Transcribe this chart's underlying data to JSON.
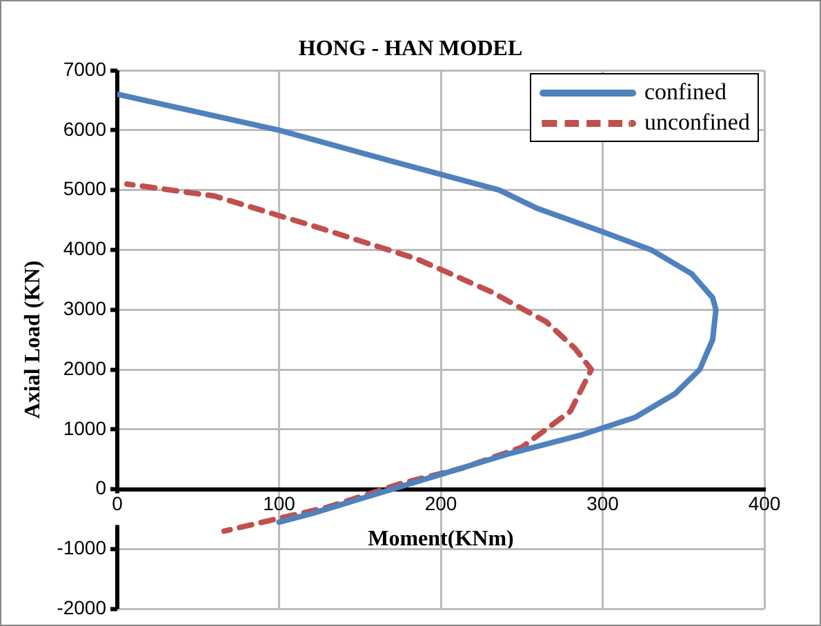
{
  "chart_data": {
    "type": "line",
    "title": "HONG - HAN MODEL",
    "xlabel": "Moment(KNm)",
    "ylabel": "Axial Load (KN)",
    "xlim": [
      0,
      400
    ],
    "xticks": [
      0,
      100,
      200,
      300,
      400
    ],
    "ylim": [
      -2000,
      7000
    ],
    "yticks": [
      -2000,
      -1000,
      0,
      1000,
      2000,
      3000,
      4000,
      5000,
      6000,
      7000
    ],
    "grid": true,
    "legend": "top right",
    "marker": "none",
    "series": [
      {
        "name": "confined",
        "color": "#4f81bd",
        "line_style": "solid",
        "x": [
          0,
          100,
          167,
          236,
          259,
          300,
          330,
          355,
          368,
          370,
          368,
          360,
          345,
          320,
          286,
          243,
          182,
          121,
          100
        ],
        "values": [
          6600,
          6000,
          5500,
          5000,
          4700,
          4300,
          4000,
          3600,
          3200,
          3000,
          2500,
          2000,
          1600,
          1200,
          900,
          600,
          100,
          -400,
          -550
        ]
      },
      {
        "name": "unconfined",
        "color": "#c0504d",
        "line_style": "dashed",
        "x": [
          6,
          60,
          121,
          185,
          231,
          265,
          283,
          293,
          280,
          250,
          213,
          176,
          130,
          66
        ],
        "values": [
          5100,
          4900,
          4400,
          3850,
          3300,
          2800,
          2350,
          2000,
          1300,
          700,
          350,
          100,
          -300,
          -700
        ]
      }
    ]
  }
}
